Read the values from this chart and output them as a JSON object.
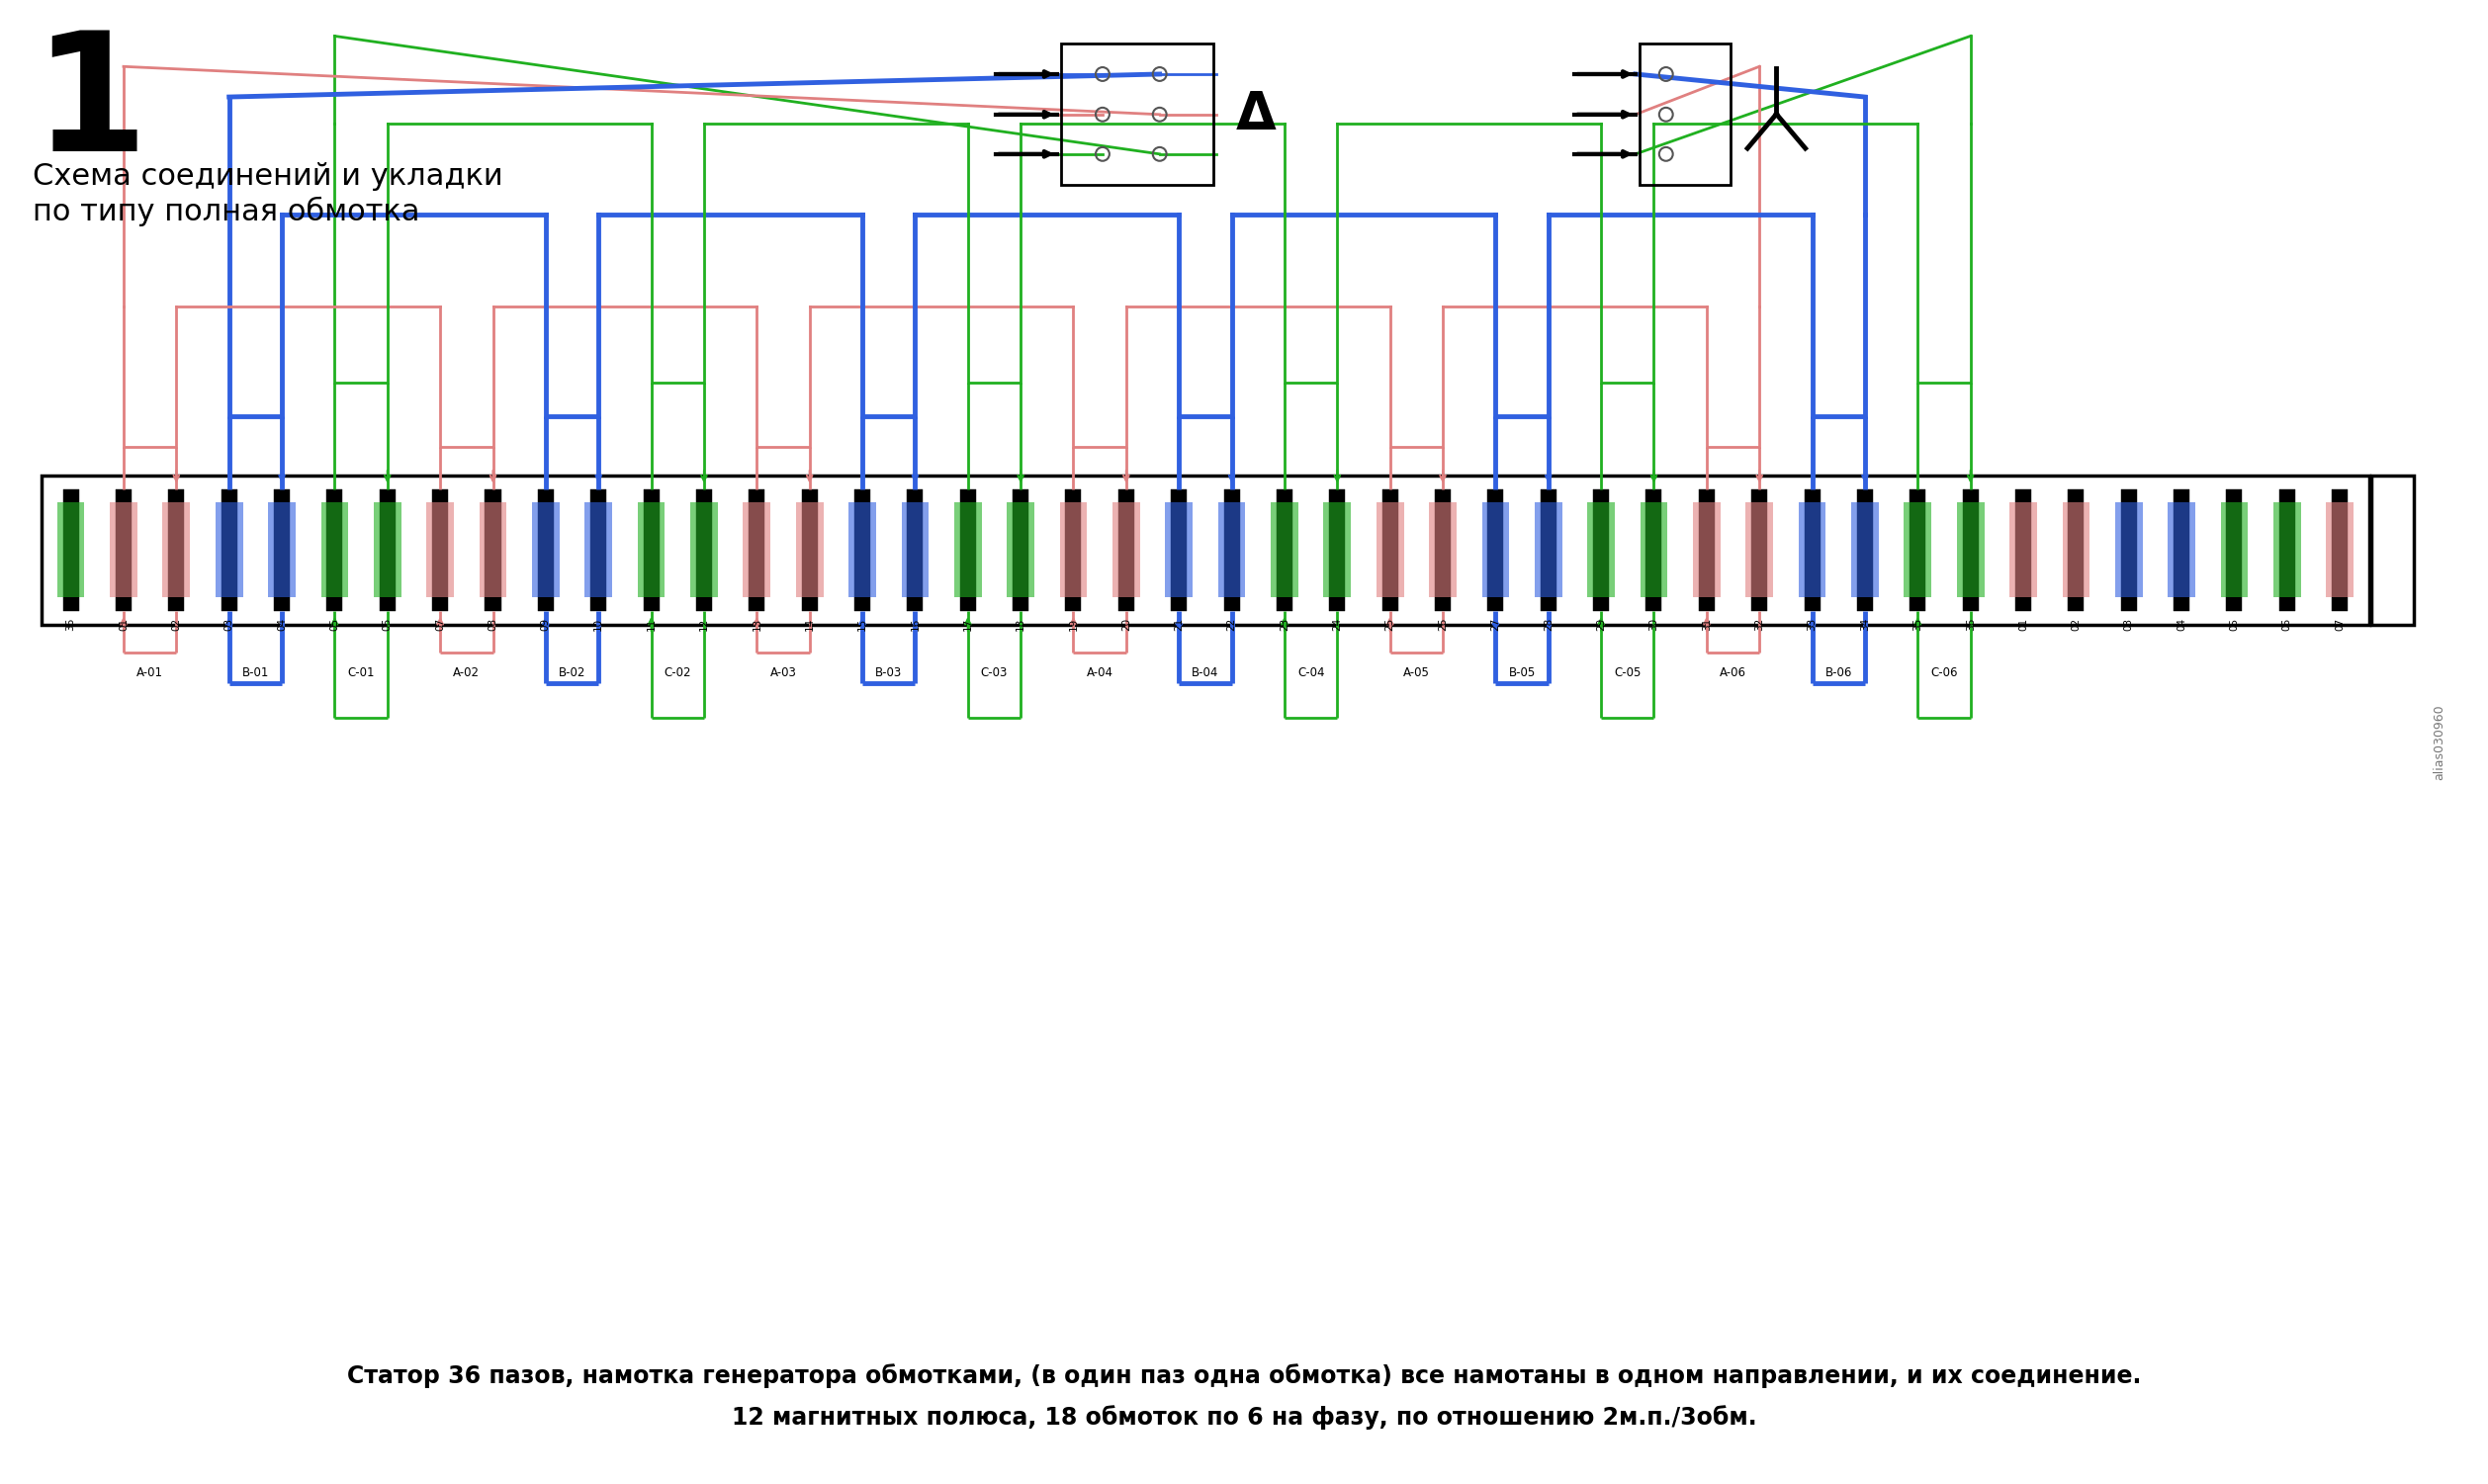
{
  "title_number": "1",
  "title_text1": "Схема соединений и укладки",
  "title_text2": "по типу полная обмотка",
  "bottom_text1": "Статор 36 пазов, намотка генератора обмотками, (в один паз одна обмотка) все намотаны в одном направлении, и их соединение.",
  "bottom_text2": "12 магнитных полюса, 18 обмоток по 6 на фазу, по отношению 2м.п./3обм.",
  "color_A": "#E08080",
  "color_B": "#3060E0",
  "color_C": "#20B020",
  "color_black": "#000000",
  "color_bg": "#FFFFFF",
  "watermark": "alias030960",
  "slot_nums_visible": [
    "36",
    "01",
    "02",
    "03",
    "04",
    "05",
    "06",
    "07",
    "08",
    "09",
    "10",
    "11",
    "12",
    "13",
    "14",
    "15",
    "16",
    "17",
    "18",
    "19",
    "20",
    "21",
    "22",
    "23",
    "24",
    "25",
    "26",
    "27",
    "28",
    "29",
    "30",
    "31",
    "32",
    "33",
    "34",
    "35",
    "36",
    "01",
    "02",
    "03",
    "04",
    "05",
    "06",
    "07"
  ],
  "coil_labels": [
    "A-01",
    "B-01",
    "C-01",
    "A-02",
    "B-02",
    "C-02",
    "A-03",
    "B-03",
    "C-03",
    "A-04",
    "B-04",
    "C-04",
    "A-05",
    "B-05",
    "C-05",
    "A-06",
    "B-06",
    "C-06"
  ]
}
